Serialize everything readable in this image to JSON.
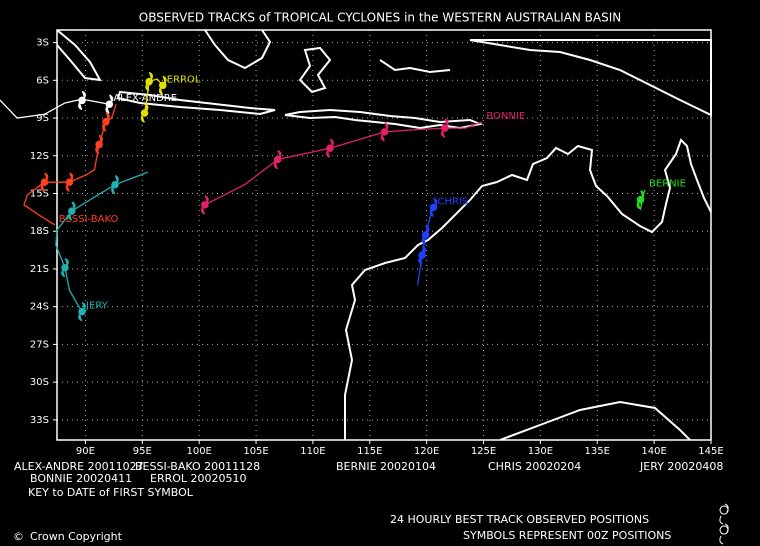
{
  "chart_data": {
    "type": "track-map",
    "title": "OBSERVED TRACKS of TROPICAL CYCLONES in the WESTERN AUSTRALIAN BASIN",
    "xlim": [
      87.5,
      145
    ],
    "ylim": [
      -34.6,
      -2
    ],
    "xticks": [
      {
        "value": 90,
        "label": "90E"
      },
      {
        "value": 95,
        "label": "95E"
      },
      {
        "value": 100,
        "label": "100E"
      },
      {
        "value": 105,
        "label": "105E"
      },
      {
        "value": 110,
        "label": "110E"
      },
      {
        "value": 115,
        "label": "115E"
      },
      {
        "value": 120,
        "label": "120E"
      },
      {
        "value": 125,
        "label": "125E"
      },
      {
        "value": 130,
        "label": "130E"
      },
      {
        "value": 135,
        "label": "135E"
      },
      {
        "value": 140,
        "label": "140E"
      },
      {
        "value": 145,
        "label": "145E"
      }
    ],
    "yticks": [
      {
        "value": -3,
        "label": "3S"
      },
      {
        "value": -6,
        "label": "6S"
      },
      {
        "value": -9,
        "label": "9S"
      },
      {
        "value": -12,
        "label": "12S"
      },
      {
        "value": -15,
        "label": "15S"
      },
      {
        "value": -18,
        "label": "18S"
      },
      {
        "value": -21,
        "label": "21S"
      },
      {
        "value": -24,
        "label": "24S"
      },
      {
        "value": -27,
        "label": "27S"
      },
      {
        "value": -30,
        "label": "30S"
      },
      {
        "value": -33,
        "label": "33S"
      }
    ],
    "grid": true,
    "series": [
      {
        "name": "ALEX-ANDRE",
        "color": "#ffffff",
        "x": [
          82.4,
          84.0,
          86.4,
          88.2,
          89.7,
          92.1
        ],
        "y": [
          -7.5,
          -9.0,
          -8.7,
          -7.8,
          -7.5,
          -7.9
        ],
        "positions": {
          "x": [
            89.7,
            92.1
          ],
          "y": [
            -7.6,
            -7.9
          ]
        }
      },
      {
        "name": "BESSI-BAKO",
        "color": "#ff4020",
        "x": [
          92.7,
          92.3,
          91.8,
          91.2,
          90.8,
          90.1,
          88.6,
          86.4,
          84.9,
          84.6,
          85.9,
          87.3
        ],
        "y": [
          -7.9,
          -9.0,
          -9.3,
          -11.1,
          -13.1,
          -13.5,
          -14.1,
          -14.1,
          -15.1,
          -15.9,
          -16.7,
          -17.5
        ],
        "positions": {
          "x": [
            91.8,
            91.2,
            88.6,
            86.4
          ],
          "y": [
            -9.3,
            -11.1,
            -14.1,
            -14.1
          ]
        }
      },
      {
        "name": "JERY",
        "color": "#20b0b0",
        "x": [
          95.5,
          92.6,
          90.4,
          88.8,
          87.5,
          87.4,
          88.2,
          88.6,
          89.3,
          89.7
        ],
        "y": [
          -13.3,
          -14.3,
          -15.5,
          -16.4,
          -17.9,
          -19.1,
          -20.9,
          -22.7,
          -23.8,
          -24.4
        ],
        "positions": {
          "x": [
            92.6,
            88.8,
            88.2,
            89.7
          ],
          "y": [
            -14.3,
            -16.4,
            -20.9,
            -24.4
          ]
        }
      },
      {
        "name": "ERROL",
        "color": "#e0e000",
        "x": [
          95.2,
          95.4,
          95.6,
          96.3,
          96.8
        ],
        "y": [
          -8.6,
          -7.5,
          -6.1,
          -5.9,
          -6.4
        ],
        "positions": {
          "x": [
            95.2,
            95.6,
            96.8
          ],
          "y": [
            -8.6,
            -6.1,
            -6.4
          ]
        }
      },
      {
        "name": "BONNIE",
        "color": "#e0206a",
        "x": [
          100.5,
          104.0,
          106.9,
          111.5,
          116.3,
          119.4,
          121.6,
          123.4,
          124.9
        ],
        "y": [
          -15.9,
          -14.3,
          -12.3,
          -11.4,
          -10.1,
          -9.9,
          -9.8,
          -9.8,
          -9.3
        ],
        "positions": {
          "x": [
            100.5,
            106.9,
            111.5,
            116.3,
            121.6
          ],
          "y": [
            -15.9,
            -12.3,
            -11.4,
            -10.1,
            -9.8
          ]
        }
      },
      {
        "name": "CHRIS",
        "color": "#2040ff",
        "x": [
          119.2,
          119.6,
          119.9,
          120.3,
          120.6
        ],
        "y": [
          -22.3,
          -19.9,
          -18.3,
          -16.9,
          -16.1
        ],
        "positions": {
          "x": [
            119.6,
            119.9,
            120.6
          ],
          "y": [
            -19.9,
            -18.3,
            -16.1
          ]
        }
      },
      {
        "name": "BERNIE",
        "color": "#20e020",
        "x": [
          138.8,
          139.0,
          139.2
        ],
        "y": [
          -16.3,
          -15.2,
          -14.7
        ],
        "positions": {
          "x": [
            138.8
          ],
          "y": [
            -15.5
          ]
        }
      }
    ],
    "key": [
      "ALEX-ANDRE 20011027",
      "BESSI-BAKO 20011128",
      "BERNIE 20020104",
      "CHRIS 20020204",
      "JERY 20020408",
      "BONNIE 20020411",
      "ERROL 20020510",
      "KEY to DATE of FIRST SYMBOL"
    ],
    "footer": [
      "24 HOURLY BEST TRACK OBSERVED POSITIONS",
      "SYMBOLS REPRESENT 00Z POSITIONS"
    ],
    "copyright": "Crown Copyright"
  }
}
